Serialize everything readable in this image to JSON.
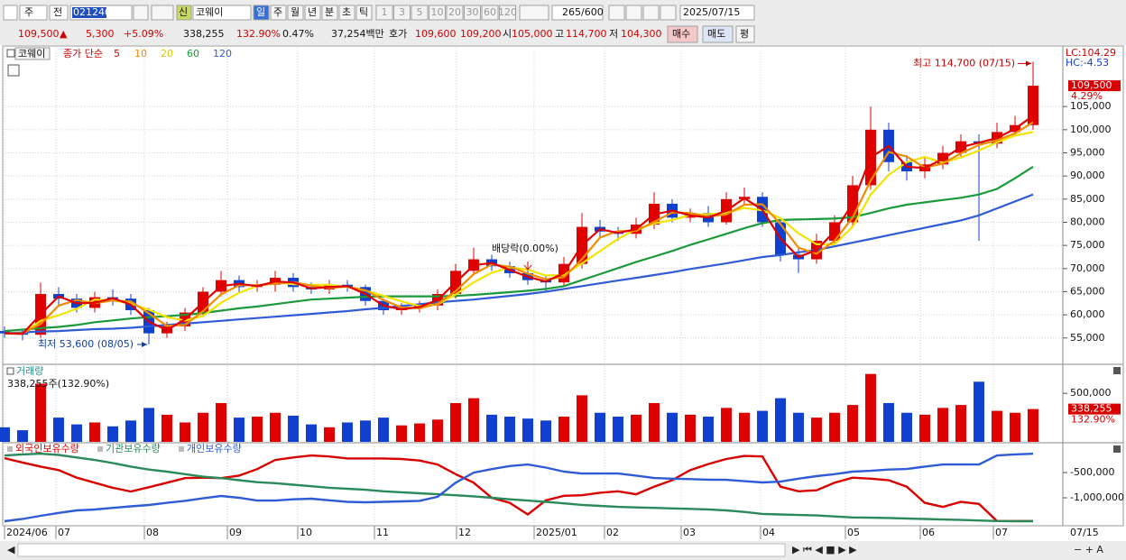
{
  "toolbar": {
    "view": "주",
    "prev": "전",
    "code": "021240",
    "new": "신",
    "name": "코웨이",
    "periods": [
      "일",
      "주",
      "월",
      "년",
      "분",
      "초",
      "틱"
    ],
    "intervals": [
      "1",
      "3",
      "5",
      "10",
      "20",
      "30",
      "60",
      "120"
    ],
    "count": "265",
    "max": "/600",
    "date": "2025/07/15"
  },
  "quote": {
    "price": "109,500",
    "arrow": "▲",
    "change": "5,300",
    "change_pct": "+5.09%",
    "volume": "338,255",
    "volume_ratio": "132.90%",
    "turnover": "0.47%",
    "amount": "37,254백만",
    "bid_ask_label": "호가",
    "ask": "109,600",
    "bid": "109,200",
    "open_label": "시",
    "open": "105,000",
    "high_label": "고",
    "high": "114,700",
    "low_label": "저",
    "low": "104,300",
    "buy": "매수",
    "sell": "매도",
    "eval": "평"
  },
  "chart_data": [
    {
      "type": "candlestick",
      "title": "코웨이",
      "ma_label": "종가 단순",
      "up_color": "#e00000",
      "down_color": "#1040d0",
      "categories": [
        null,
        null,
        null,
        null,
        null,
        null,
        null,
        null,
        null,
        null,
        null,
        null,
        null,
        null,
        null,
        null,
        null,
        null,
        null,
        null,
        null,
        null,
        null,
        null,
        null,
        null,
        null,
        null,
        null,
        null,
        null,
        null,
        null,
        null,
        null,
        null,
        null,
        null,
        null,
        null,
        null,
        null,
        null,
        null,
        null,
        null,
        null,
        null,
        null,
        null,
        null,
        null,
        null,
        null,
        null,
        null,
        null,
        null
      ],
      "open": [
        56500,
        56000,
        55700,
        64500,
        63500,
        61500,
        63800,
        63500,
        61000,
        56000,
        57500,
        60500,
        65000,
        67500,
        66000,
        66500,
        68000,
        66000,
        65500,
        66500,
        66000,
        63000,
        61000,
        61500,
        62000,
        64500,
        69500,
        72000,
        70500,
        69000,
        67500,
        67000,
        71000,
        79000,
        78000,
        77500,
        79500,
        84000,
        81000,
        82000,
        80000,
        85000,
        85500,
        80000,
        73000,
        72000,
        76000,
        80000,
        88000,
        100000,
        93000,
        91000,
        92500,
        95000,
        97500,
        97000,
        99500,
        101000
      ],
      "high": [
        57500,
        57000,
        67000,
        66000,
        64500,
        65000,
        65500,
        64500,
        61500,
        58500,
        61500,
        66000,
        69500,
        68500,
        67500,
        69500,
        69000,
        67000,
        67500,
        67500,
        66500,
        63500,
        62500,
        63000,
        65500,
        71000,
        74500,
        73000,
        71500,
        70000,
        68500,
        72500,
        82000,
        80500,
        79000,
        81000,
        86500,
        85000,
        83000,
        83500,
        86500,
        87500,
        86500,
        81000,
        74500,
        77500,
        81500,
        90000,
        105000,
        101500,
        94500,
        94000,
        96500,
        99000,
        99000,
        101500,
        103000,
        114700
      ],
      "low": [
        55000,
        54500,
        55000,
        62000,
        60500,
        60500,
        62000,
        60000,
        53600,
        55000,
        56500,
        59500,
        64000,
        65000,
        65000,
        65000,
        65000,
        64500,
        64500,
        65000,
        62000,
        60000,
        60000,
        60500,
        61000,
        63500,
        68500,
        69500,
        68000,
        66500,
        65000,
        66000,
        70000,
        76500,
        76000,
        76500,
        78500,
        80000,
        80000,
        79000,
        79500,
        84000,
        79000,
        71500,
        69000,
        71000,
        75000,
        79000,
        87000,
        91000,
        89000,
        89500,
        91500,
        94000,
        76000,
        96000,
        98500,
        100000
      ],
      "close": [
        56000,
        55700,
        64500,
        63500,
        61500,
        63800,
        63500,
        61000,
        56000,
        57500,
        60500,
        65000,
        67500,
        66000,
        66500,
        68000,
        66000,
        65500,
        66500,
        66000,
        63000,
        61000,
        61500,
        62000,
        64500,
        69500,
        72000,
        70500,
        69000,
        67500,
        67000,
        71000,
        79000,
        78000,
        77500,
        79500,
        84000,
        81000,
        82000,
        80000,
        85000,
        85500,
        80000,
        73000,
        72000,
        76000,
        80000,
        88000,
        100000,
        93000,
        91000,
        92500,
        95000,
        97500,
        97000,
        99500,
        101000,
        109500
      ],
      "series": [
        {
          "name": "5",
          "color": "#e00000",
          "values": [
            56000,
            55900,
            60100,
            64000,
            62500,
            62600,
            63600,
            62200,
            58500,
            56700,
            59000,
            62700,
            66200,
            66700,
            66200,
            67200,
            67000,
            65700,
            66000,
            66200,
            64500,
            62000,
            61200,
            61700,
            63200,
            67000,
            70700,
            71200,
            69700,
            68200,
            67200,
            69000,
            75000,
            78500,
            77700,
            78500,
            81700,
            82500,
            81500,
            81000,
            82500,
            85200,
            82700,
            76500,
            72500,
            74000,
            78000,
            84000,
            94000,
            96500,
            92000,
            91700,
            93700,
            96200,
            97200,
            98200,
            100200,
            103000
          ]
        },
        {
          "name": "10",
          "color": "#f08c00",
          "values": [
            56000,
            56000,
            58000,
            62000,
            63200,
            62500,
            63100,
            62900,
            60300,
            57600,
            57800,
            60800,
            64400,
            66400,
            66400,
            66700,
            67100,
            66300,
            65800,
            66100,
            65300,
            63200,
            61600,
            61400,
            62400,
            65100,
            68800,
            70900,
            70400,
            68900,
            67700,
            68100,
            72000,
            76700,
            78100,
            78100,
            80100,
            82100,
            82000,
            81200,
            81700,
            83800,
            83900,
            79600,
            74500,
            73200,
            76000,
            81000,
            89000,
            95200,
            94200,
            91800,
            92700,
            94900,
            96700,
            97700,
            99200,
            101600
          ]
        },
        {
          "name": "20",
          "color": "#f2e400",
          "values": [
            56000,
            55900,
            58700,
            59900,
            61300,
            63300,
            63100,
            62450,
            61100,
            59500,
            58750,
            59750,
            62600,
            64750,
            66250,
            67000,
            66600,
            66500,
            66500,
            66000,
            65250,
            64100,
            62900,
            61900,
            62250,
            64400,
            67000,
            69100,
            70250,
            69750,
            68500,
            68600,
            71100,
            73750,
            76400,
            78500,
            79750,
            80500,
            81600,
            81750,
            82000,
            83100,
            82600,
            80900,
            77600,
            75250,
            75250,
            79000,
            86000,
            90250,
            93000,
            94100,
            92900,
            94000,
            95500,
            97250,
            98750,
            99500
          ]
        },
        {
          "name": "60",
          "color": "#1a9a3a",
          "values": [
            56500,
            56800,
            57100,
            57400,
            57800,
            58400,
            58800,
            59200,
            59500,
            59700,
            60000,
            60400,
            60900,
            61400,
            61800,
            62300,
            62800,
            63300,
            63500,
            63700,
            63900,
            64000,
            64000,
            64000,
            64000,
            64100,
            64300,
            64600,
            64900,
            65200,
            65600,
            66200,
            67500,
            68800,
            70100,
            71400,
            72600,
            73800,
            75100,
            76300,
            77500,
            78700,
            79800,
            80500,
            80600,
            80700,
            80800,
            81100,
            82000,
            83000,
            83800,
            84300,
            84800,
            85300,
            86000,
            87200,
            89500,
            92000
          ]
        },
        {
          "name": "120",
          "color": "#2f5bd6",
          "values": [
            56000,
            56200,
            56400,
            56500,
            56700,
            56900,
            57000,
            57200,
            57500,
            57800,
            58100,
            58400,
            58700,
            59000,
            59300,
            59600,
            59900,
            60200,
            60500,
            60800,
            61200,
            61500,
            61900,
            62300,
            62700,
            63000,
            63300,
            63700,
            64100,
            64500,
            65000,
            65600,
            66200,
            66800,
            67400,
            68000,
            68600,
            69200,
            69900,
            70500,
            71100,
            71800,
            72500,
            72900,
            73500,
            74000,
            74800,
            75600,
            76400,
            77200,
            78000,
            78800,
            79600,
            80400,
            81500,
            83000,
            84500,
            86000
          ]
        }
      ],
      "xlim": [
        0,
        58.65
      ],
      "ylim": [
        49500,
        117700
      ],
      "yticks": [
        {
          "value": 55000,
          "label": "55,000"
        },
        {
          "value": 60000,
          "label": "60,000"
        },
        {
          "value": 65000,
          "label": "65,000"
        },
        {
          "value": 70000,
          "label": "70,000"
        },
        {
          "value": 75000,
          "label": "75,000"
        },
        {
          "value": 80000,
          "label": "80,000"
        },
        {
          "value": 85000,
          "label": "85,000"
        },
        {
          "value": 90000,
          "label": "90,000"
        },
        {
          "value": 95000,
          "label": "95,000"
        },
        {
          "value": 100000,
          "label": "100,000"
        },
        {
          "value": 105000,
          "label": "105,000"
        }
      ],
      "grid": true,
      "high_note": "최고 114,700 (07/15)",
      "low_note": "최저 53,600 (08/05)",
      "dividend_note": "배당락(0.00%)",
      "lc": "LC:104.29",
      "hc": "HC:-4.53",
      "last_label": "109,500",
      "last_change": "4.29%"
    },
    {
      "type": "bar",
      "title": "거래량",
      "subtitle": "338,255주(132.90%)",
      "up_color": "#e00000",
      "down_color": "#1040d0",
      "values": [
        150000,
        120000,
        600000,
        250000,
        180000,
        200000,
        160000,
        220000,
        350000,
        280000,
        200000,
        300000,
        400000,
        250000,
        260000,
        300000,
        270000,
        180000,
        150000,
        200000,
        220000,
        250000,
        170000,
        190000,
        230000,
        400000,
        450000,
        280000,
        260000,
        240000,
        220000,
        260000,
        480000,
        300000,
        260000,
        280000,
        400000,
        300000,
        280000,
        260000,
        350000,
        300000,
        320000,
        450000,
        300000,
        250000,
        300000,
        380000,
        700000,
        400000,
        300000,
        280000,
        350000,
        380000,
        620000,
        320000,
        300000,
        338255
      ],
      "xlim": [
        0,
        58.65
      ],
      "ylim": [
        0,
        790000
      ],
      "yticks": [
        {
          "value": 500000,
          "label": "500,000"
        }
      ],
      "last_label": "338,255",
      "last_ratio": "132.90%"
    },
    {
      "type": "line",
      "series": [
        {
          "name": "외국인보유수량",
          "color": "#d80000",
          "values": [
            -214000,
            -300000,
            -380000,
            -450000,
            -600000,
            -700000,
            -800000,
            -875000,
            -790000,
            -700000,
            -610000,
            -600000,
            -610000,
            -560000,
            -430000,
            -250000,
            -200000,
            -160000,
            -180000,
            -220000,
            -220000,
            -220000,
            -230000,
            -260000,
            -340000,
            -530000,
            -700000,
            -1000000,
            -1100000,
            -1330000,
            -1050000,
            -960000,
            -950000,
            -900000,
            -870000,
            -930000,
            -780000,
            -650000,
            -450000,
            -330000,
            -230000,
            -170000,
            -180000,
            -780000,
            -870000,
            -850000,
            -700000,
            -600000,
            -620000,
            -650000,
            -780000,
            -1100000,
            -1180000,
            -1080000,
            -1120000,
            -1460000,
            -1460000,
            -1460000
          ]
        },
        {
          "name": "기관보유수량",
          "color": "#2a8a5a",
          "values": [
            -161000,
            -140000,
            -125000,
            -150000,
            -200000,
            -250000,
            -310000,
            -380000,
            -440000,
            -480000,
            -530000,
            -580000,
            -610000,
            -650000,
            -690000,
            -710000,
            -740000,
            -770000,
            -800000,
            -820000,
            -840000,
            -870000,
            -890000,
            -910000,
            -930000,
            -950000,
            -970000,
            -1000000,
            -1030000,
            -1055000,
            -1080000,
            -1110000,
            -1140000,
            -1160000,
            -1180000,
            -1190000,
            -1200000,
            -1210000,
            -1220000,
            -1230000,
            -1250000,
            -1280000,
            -1320000,
            -1330000,
            -1340000,
            -1350000,
            -1370000,
            -1390000,
            -1395000,
            -1400000,
            -1410000,
            -1420000,
            -1430000,
            -1440000,
            -1450000,
            -1460000,
            -1465000,
            -1465000
          ]
        },
        {
          "name": "개인보유수량",
          "color": "#2f5bd6",
          "values": [
            -1464000,
            -1420000,
            -1357000,
            -1300000,
            -1250000,
            -1232000,
            -1200000,
            -1170000,
            -1143000,
            -1100000,
            -1060000,
            -1010000,
            -964000,
            -1000000,
            -1054000,
            -1054000,
            -1030000,
            -1018000,
            -1050000,
            -1080000,
            -1089000,
            -1080000,
            -1071000,
            -1060000,
            -980000,
            -700000,
            -500000,
            -430000,
            -370000,
            -339000,
            -400000,
            -480000,
            -518000,
            -518000,
            -518000,
            -560000,
            -607000,
            -620000,
            -630000,
            -640000,
            -643000,
            -670000,
            -696000,
            -680000,
            -620000,
            -571000,
            -530000,
            -480000,
            -464000,
            -440000,
            -429000,
            -380000,
            -339000,
            -339000,
            -339000,
            -161000,
            -140000,
            -125000
          ]
        }
      ],
      "xlim": [
        0,
        58.65
      ],
      "ylim": [
        -1500000,
        20000
      ],
      "yticks": [
        {
          "value": -500000,
          "label": "-500,000"
        },
        {
          "value": -1000000,
          "label": "-1,000,000"
        }
      ],
      "xticks": [
        {
          "value": 0,
          "label": "2024/06"
        },
        {
          "value": 2.85,
          "label": "07"
        },
        {
          "value": 7.75,
          "label": "08"
        },
        {
          "value": 12.35,
          "label": "09"
        },
        {
          "value": 16.25,
          "label": "10"
        },
        {
          "value": 20.5,
          "label": "11"
        },
        {
          "value": 25.05,
          "label": "12"
        },
        {
          "value": 29.35,
          "label": "2025/01"
        },
        {
          "value": 33.25,
          "label": "02"
        },
        {
          "value": 37.5,
          "label": "03"
        },
        {
          "value": 41.9,
          "label": "04"
        },
        {
          "value": 46.6,
          "label": "05"
        },
        {
          "value": 50.75,
          "label": "06"
        },
        {
          "value": 54.8,
          "label": "07"
        }
      ],
      "last_date": "07/15"
    }
  ]
}
